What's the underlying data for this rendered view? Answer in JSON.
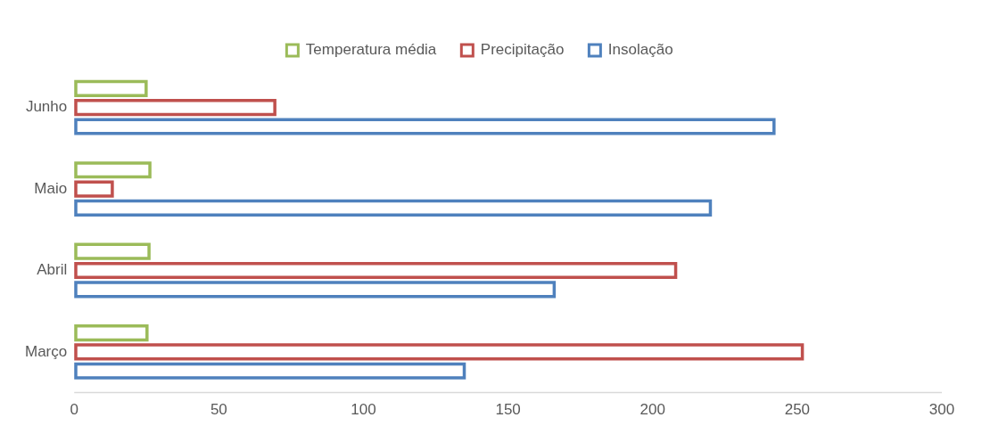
{
  "chart_data": {
    "type": "bar",
    "orientation": "horizontal",
    "categories": [
      "Junho",
      "Maio",
      "Abril",
      "Março"
    ],
    "series": [
      {
        "name": "Temperatura média",
        "color": "#9bbb59",
        "values": [
          25.4,
          26.7,
          26.4,
          25.7
        ]
      },
      {
        "name": "Precipitação",
        "color": "#c0504d",
        "values": [
          69.9,
          13.7,
          208.5,
          252.3
        ]
      },
      {
        "name": "Insolação",
        "color": "#4f81bd",
        "values": [
          242.5,
          220.5,
          166.5,
          135.4
        ]
      }
    ],
    "xlim": [
      0,
      300
    ],
    "xticks": [
      0,
      50,
      100,
      150,
      200,
      250,
      300
    ],
    "grid": false,
    "legend": "top"
  }
}
